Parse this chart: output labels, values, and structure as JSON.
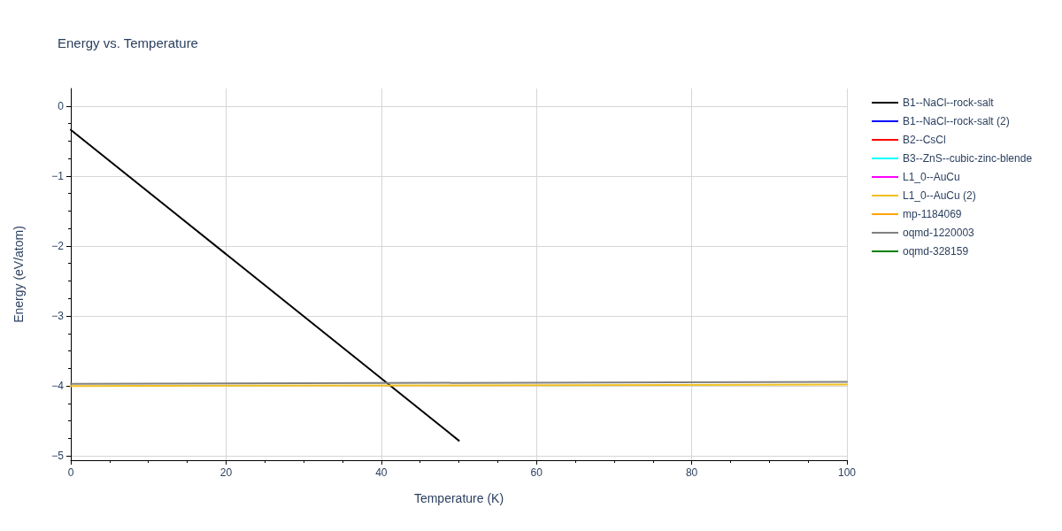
{
  "chart_data": {
    "type": "line",
    "title": "Energy vs. Temperature",
    "xlabel": "Temperature (K)",
    "ylabel": "Energy (eV/atom)",
    "xlim": [
      0,
      100
    ],
    "xticks": [
      0,
      20,
      40,
      60,
      80,
      100
    ],
    "ylim": [
      -5.06,
      0.25
    ],
    "yticks": [
      0,
      -1,
      -2,
      -3,
      -4,
      -5
    ],
    "grid": true,
    "legend": "top right",
    "marker": "none",
    "line_style": "solid",
    "series": [
      {
        "name": "B1--NaCl--rock-salt",
        "color": "#000000",
        "x": [
          0,
          50
        ],
        "values": [
          -0.34,
          -4.78
        ]
      },
      {
        "name": "B1--NaCl--rock-salt (2)",
        "color": "#0000ff"
      },
      {
        "name": "B2--CsCl",
        "color": "#ff0000"
      },
      {
        "name": "B3--ZnS--cubic-zinc-blende",
        "color": "#00ffff"
      },
      {
        "name": "L1_0--AuCu",
        "color": "#ff00ff"
      },
      {
        "name": "L1_0--AuCu (2)",
        "color": "#f0c020",
        "x": [
          0,
          100
        ],
        "values": [
          -4.0,
          -3.98
        ]
      },
      {
        "name": "mp-1184069",
        "color": "#ffa500"
      },
      {
        "name": "oqmd-1220003",
        "color": "#808080",
        "x": [
          0,
          100
        ],
        "values": [
          -3.97,
          -3.94
        ]
      },
      {
        "name": "oqmd-328159",
        "color": "#008000"
      }
    ]
  }
}
